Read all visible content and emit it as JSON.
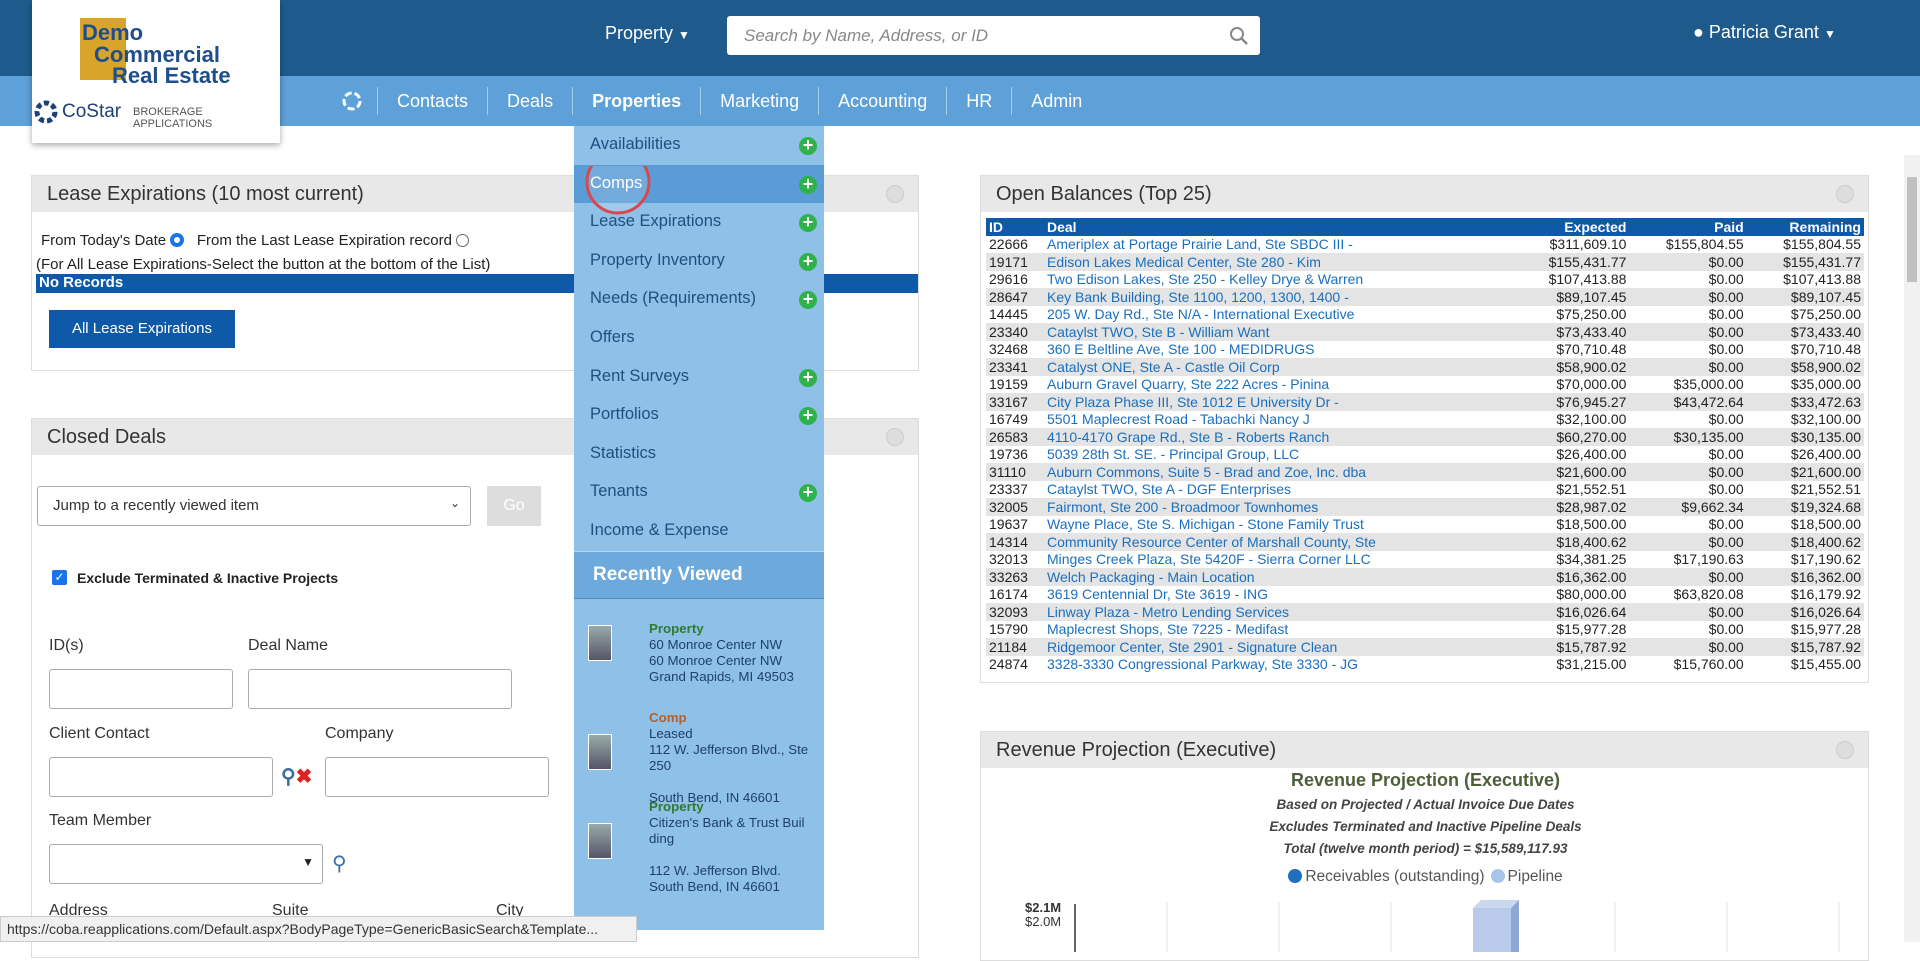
{
  "logo": {
    "lines": [
      "Demo",
      "Commercial",
      "Real Estate"
    ],
    "brand": "CoStar",
    "brand_sub": "BROKERAGE APPLICATIONS"
  },
  "top_bar": {
    "property_menu": "Property",
    "search_placeholder": "Search by Name, Address, or ID",
    "user": "Patricia Grant"
  },
  "nav": [
    "Contacts",
    "Deals",
    "Properties",
    "Marketing",
    "Accounting",
    "HR",
    "Admin"
  ],
  "dropdown": {
    "items": [
      {
        "label": "Availabilities",
        "add": true
      },
      {
        "label": "Comps",
        "add": true,
        "active": true
      },
      {
        "label": "Lease Expirations",
        "add": true
      },
      {
        "label": "Property Inventory",
        "add": true
      },
      {
        "label": "Needs (Requirements)",
        "add": true
      },
      {
        "label": "Offers",
        "add": false
      },
      {
        "label": "Rent Surveys",
        "add": true
      },
      {
        "label": "Portfolios",
        "add": true
      },
      {
        "label": "Statistics",
        "add": false
      },
      {
        "label": "Tenants",
        "add": true
      },
      {
        "label": "Income & Expense",
        "add": false
      }
    ],
    "recent_title": "Recently Viewed",
    "recent": [
      {
        "type": "Property",
        "head": [
          "60 Monroe Center NW",
          "60 Monroe Center NW",
          "Grand Rapids, MI 49503"
        ]
      },
      {
        "type": "Comp",
        "head": [
          "Leased",
          "112 W. Jefferson Blvd., Ste 250"
        ],
        "tail": [
          "South Bend, IN 46601"
        ]
      },
      {
        "type": "Property",
        "head": [
          "Citizen's Bank & Trust Building"
        ],
        "tail": [
          "112 W. Jefferson Blvd.",
          "South Bend, IN 46601"
        ]
      }
    ]
  },
  "lease": {
    "title": "Lease Expirations (10 most current)",
    "radio_1": "From Today's Date",
    "radio_2": "From the Last Lease Expiration record",
    "note": "(For All Lease Expirations-Select the button at the bottom of the List)",
    "empty": "No Records",
    "button": "All Lease Expirations"
  },
  "closed": {
    "title": "Closed Deals",
    "jump": "Jump to a recently viewed item",
    "go": "Go",
    "checkbox": "Exclude Terminated & Inactive Projects",
    "labels": {
      "ids": "ID(s)",
      "deal_name": "Deal Name",
      "client": "Client Contact",
      "company": "Company",
      "team": "Team Member",
      "address": "Address",
      "suite": "Suite",
      "city": "City"
    }
  },
  "balances": {
    "title": "Open Balances (Top 25)",
    "columns": [
      "ID",
      "Deal",
      "Expected",
      "Paid",
      "Remaining"
    ],
    "rows": [
      [
        "22666",
        "Ameriplex at Portage Prairie Land, Ste SBDC III -",
        "$311,609.10",
        "$155,804.55",
        "$155,804.55"
      ],
      [
        "19171",
        "Edison Lakes Medical Center, Ste 280 - Kim",
        "$155,431.77",
        "$0.00",
        "$155,431.77"
      ],
      [
        "29616",
        "Two Edison Lakes, Ste 250 - Kelley Drye & Warren",
        "$107,413.88",
        "$0.00",
        "$107,413.88"
      ],
      [
        "28647",
        "Key Bank Building, Ste 1100, 1200, 1300, 1400 -",
        "$89,107.45",
        "$0.00",
        "$89,107.45"
      ],
      [
        "14445",
        "205 W. Day Rd., Ste N/A - International Executive",
        "$75,250.00",
        "$0.00",
        "$75,250.00"
      ],
      [
        "23340",
        "Cataylst TWO, Ste B - William Want",
        "$73,433.40",
        "$0.00",
        "$73,433.40"
      ],
      [
        "32468",
        "360 E Beltline Ave, Ste 100 - MEDIDRUGS",
        "$70,710.48",
        "$0.00",
        "$70,710.48"
      ],
      [
        "23341",
        "Catalyst ONE, Ste A - Castle Oil Corp",
        "$58,900.02",
        "$0.00",
        "$58,900.02"
      ],
      [
        "19159",
        "Auburn Gravel Quarry, Ste 222 Acres - Pinina",
        "$70,000.00",
        "$35,000.00",
        "$35,000.00"
      ],
      [
        "33167",
        "City Plaza Phase III, Ste 1012 E University Dr -",
        "$76,945.27",
        "$43,472.64",
        "$33,472.63"
      ],
      [
        "16749",
        "5501 Maplecrest Road - Tabachki Nancy J",
        "$32,100.00",
        "$0.00",
        "$32,100.00"
      ],
      [
        "26583",
        "4110-4170 Grape Rd., Ste B - Roberts Ranch",
        "$60,270.00",
        "$30,135.00",
        "$30,135.00"
      ],
      [
        "19736",
        "5039 28th St. SE. - Principal Group, LLC",
        "$26,400.00",
        "$0.00",
        "$26,400.00"
      ],
      [
        "31110",
        "Auburn Commons, Suite 5 - Brad and Zoe, Inc. dba",
        "$21,600.00",
        "$0.00",
        "$21,600.00"
      ],
      [
        "23337",
        "Cataylst TWO, Ste A - DGF Enterprises",
        "$21,552.51",
        "$0.00",
        "$21,552.51"
      ],
      [
        "32005",
        "Fairmont, Ste 200 - Broadmoor Townhomes",
        "$28,987.02",
        "$9,662.34",
        "$19,324.68"
      ],
      [
        "19637",
        "Wayne Place, Ste S. Michigan - Stone Family Trust",
        "$18,500.00",
        "$0.00",
        "$18,500.00"
      ],
      [
        "14314",
        "Community Resource Center of Marshall County, Ste",
        "$18,400.62",
        "$0.00",
        "$18,400.62"
      ],
      [
        "32013",
        "Minges Creek Plaza, Ste 5420F - Sierra Corner LLC",
        "$34,381.25",
        "$17,190.63",
        "$17,190.62"
      ],
      [
        "33263",
        "Welch Packaging - Main Location",
        "$16,362.00",
        "$0.00",
        "$16,362.00"
      ],
      [
        "16174",
        "3619 Centennial Dr, Ste 3619 - ING",
        "$80,000.00",
        "$63,820.08",
        "$16,179.92"
      ],
      [
        "32093",
        "Linway Plaza - Metro Lending Services",
        "$16,026.64",
        "$0.00",
        "$16,026.64"
      ],
      [
        "15790",
        "Maplecrest Shops, Ste 7225 - Medifast",
        "$15,977.28",
        "$0.00",
        "$15,977.28"
      ],
      [
        "21184",
        "Ridgemoor Center, Ste 2901 - Signature Clean",
        "$15,787.92",
        "$0.00",
        "$15,787.92"
      ],
      [
        "24874",
        "3328-3330 Congressional Parkway, Ste 3330 - JG",
        "$31,215.00",
        "$15,760.00",
        "$15,455.00"
      ]
    ]
  },
  "revenue": {
    "title": "Revenue Projection (Executive)",
    "chart_title": "Revenue Projection (Executive)",
    "subtitles": [
      "Based on Projected / Actual Invoice Due Dates",
      "Excludes Terminated and Inactive Pipeline Deals",
      "Total (twelve month period) = $15,589,117.93"
    ],
    "legend": [
      "Receivables (outstanding)",
      "Pipeline"
    ],
    "axis_labels": [
      "$2.1M",
      "$2.0M"
    ]
  },
  "status_url": "https://coba.reapplications.com/Default.aspx?BodyPageType=GenericBasicSearch&Template..."
}
